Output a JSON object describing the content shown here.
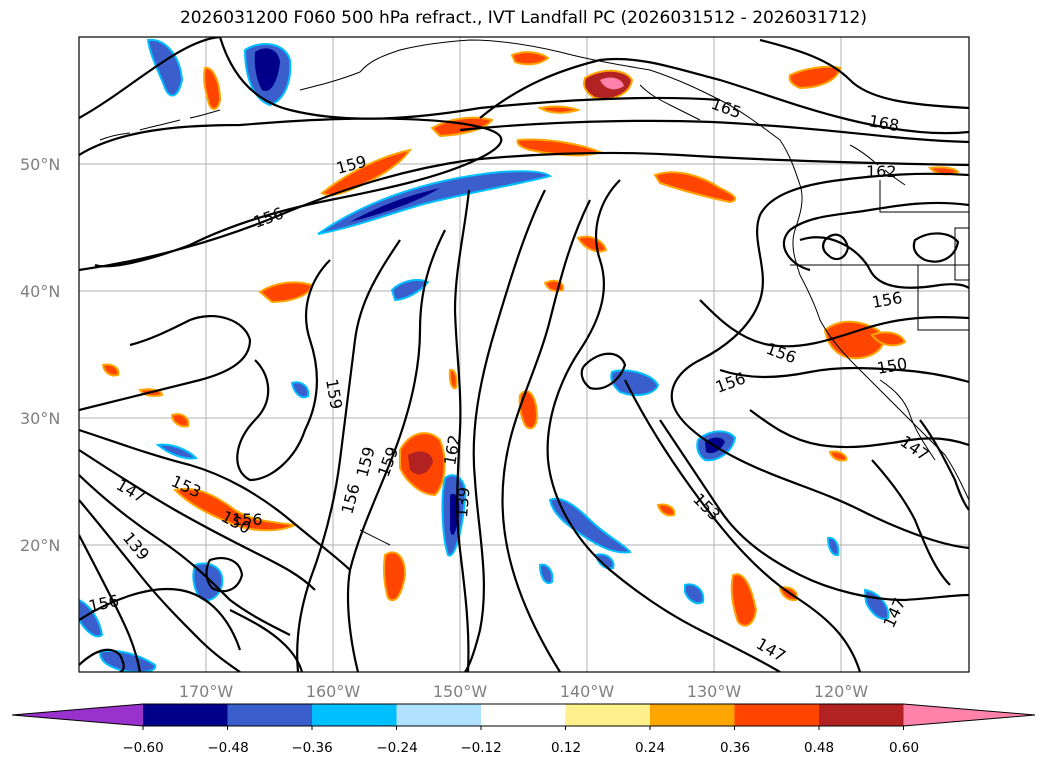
{
  "title": "2026031200 F060 500 hPa refract., IVT Landfall PC (2026031512 - 2026031712)",
  "lat_labels": [
    "20°N",
    "30°N",
    "40°N",
    "50°N"
  ],
  "lon_labels": [
    "170°W",
    "160°W",
    "150°W",
    "140°W",
    "130°W",
    "120°W"
  ],
  "contour_labels": [
    "168",
    "165",
    "162",
    "159",
    "159",
    "159",
    "156",
    "156",
    "156",
    "156",
    "156",
    "153",
    "153",
    "150",
    "150",
    "147",
    "147",
    "147",
    "147",
    "139",
    "159",
    "162",
    "139",
    "156",
    "156"
  ],
  "colorbar": {
    "ticks": [
      "−0.60",
      "−0.48",
      "−0.36",
      "−0.24",
      "−0.12",
      "0.12",
      "0.24",
      "0.36",
      "0.48",
      "0.60"
    ],
    "colors": [
      "#9932cc",
      "#00008b",
      "#3a5fcd",
      "#00bfff",
      "#b0e2ff",
      "#ffffff",
      "#fff08c",
      "#ffa500",
      "#ff4500",
      "#b22222",
      "#ff82ab"
    ]
  }
}
